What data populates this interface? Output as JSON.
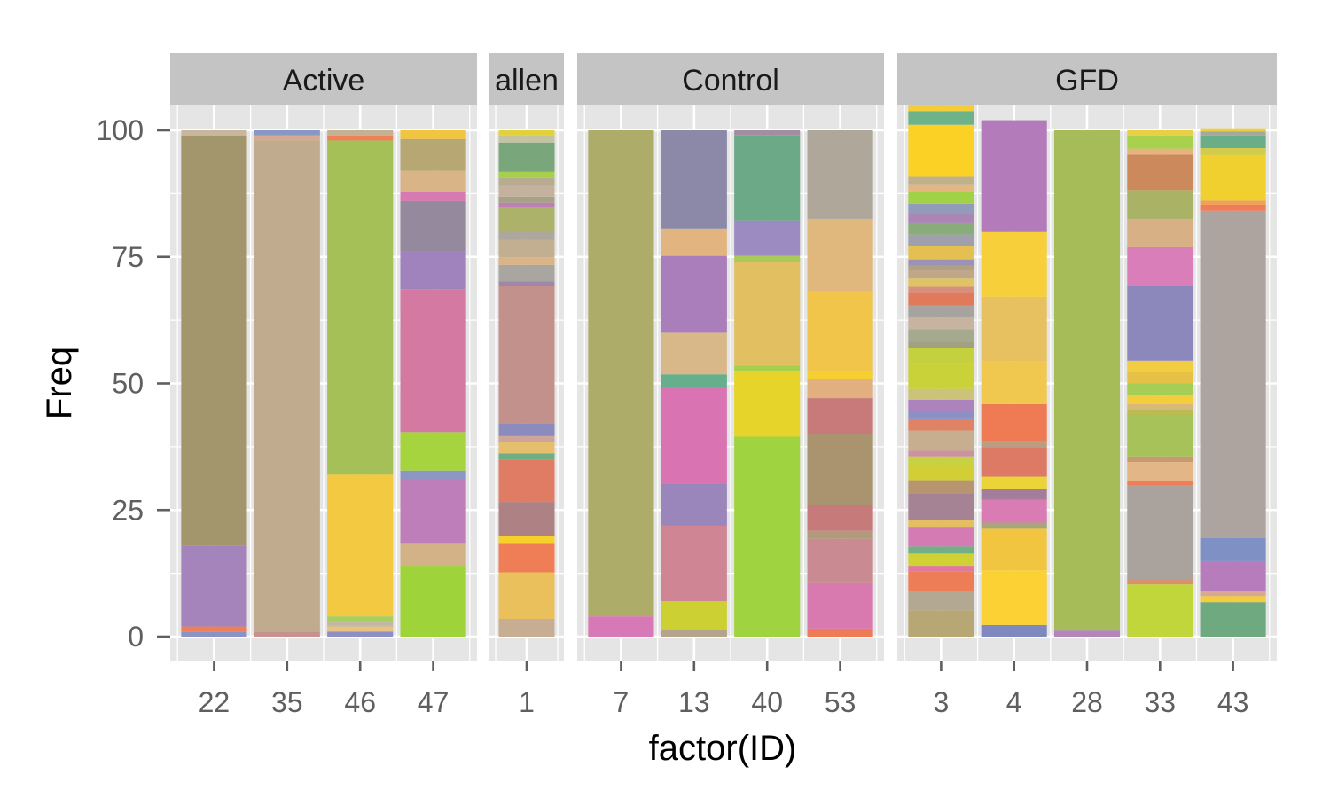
{
  "chart_data": {
    "type": "bar",
    "stacked": true,
    "title": "",
    "xlabel": "factor(ID)",
    "ylabel": "Freq",
    "ylim": [
      0,
      100
    ],
    "yticks": [
      0,
      25,
      50,
      75,
      100
    ],
    "colors": {
      "panel_bg": "#e5e5e5",
      "grid": "#ffffff",
      "strip_bg": "#c4c4c4",
      "tick_text": "#5f5f5f"
    },
    "panels": [
      {
        "label": "Active",
        "bars": [
          {
            "id": "22",
            "segments": [
              {
                "value": 1,
                "color": "#8b93c4"
              },
              {
                "value": 1,
                "color": "#ee7f58"
              },
              {
                "value": 16,
                "color": "#a583bb"
              },
              {
                "value": 81,
                "color": "#a3956c"
              },
              {
                "value": 1,
                "color": "#c8b79c"
              }
            ]
          },
          {
            "id": "35",
            "segments": [
              {
                "value": 1,
                "color": "#c7928e"
              },
              {
                "value": 97,
                "color": "#c1ab8e"
              },
              {
                "value": 1,
                "color": "#d6a990"
              },
              {
                "value": 1,
                "color": "#8798c6"
              }
            ]
          },
          {
            "id": "46",
            "segments": [
              {
                "value": 1,
                "color": "#8d90c4"
              },
              {
                "value": 1,
                "color": "#e7c283"
              },
              {
                "value": 1,
                "color": "#c2b8a4"
              },
              {
                "value": 1,
                "color": "#a8cf5c"
              },
              {
                "value": 28,
                "color": "#f2c940"
              },
              {
                "value": 66,
                "color": "#a4c057"
              },
              {
                "value": 1,
                "color": "#ee7f58"
              },
              {
                "value": 1,
                "color": "#c4b191"
              }
            ]
          },
          {
            "id": "47",
            "segments": [
              {
                "value": 14,
                "color": "#9fd33a"
              },
              {
                "value": 4.5,
                "color": "#d3b287"
              },
              {
                "value": 12.5,
                "color": "#bd7eba"
              },
              {
                "value": 1.8,
                "color": "#8d96c3"
              },
              {
                "value": 7.6,
                "color": "#a5d43e"
              },
              {
                "value": 28.2,
                "color": "#d379a2"
              },
              {
                "value": 7.5,
                "color": "#a083bd"
              },
              {
                "value": 9.9,
                "color": "#958a9d"
              },
              {
                "value": 1.8,
                "color": "#d87ab2"
              },
              {
                "value": 4.2,
                "color": "#d9b486"
              },
              {
                "value": 6.3,
                "color": "#b7a873"
              },
              {
                "value": 1.7,
                "color": "#f1c540"
              }
            ]
          }
        ]
      },
      {
        "label": "allen",
        "bars": [
          {
            "id": "1",
            "segments": [
              {
                "value": 3.5,
                "color": "#c7ae92"
              },
              {
                "value": 9.2,
                "color": "#e9c05c"
              },
              {
                "value": 5.8,
                "color": "#ef7d55"
              },
              {
                "value": 1.3,
                "color": "#f7d12b"
              },
              {
                "value": 6.8,
                "color": "#ae8184"
              },
              {
                "value": 8.3,
                "color": "#e07c63"
              },
              {
                "value": 1.3,
                "color": "#6fae83"
              },
              {
                "value": 2.2,
                "color": "#e5be6e"
              },
              {
                "value": 1.2,
                "color": "#cda59a"
              },
              {
                "value": 2.5,
                "color": "#8b8cbd"
              },
              {
                "value": 27.1,
                "color": "#c3918b"
              },
              {
                "value": 1.0,
                "color": "#9f86ab"
              },
              {
                "value": 3.2,
                "color": "#a9a6a1"
              },
              {
                "value": 1.5,
                "color": "#d8b486"
              },
              {
                "value": 3.4,
                "color": "#c2ae91"
              },
              {
                "value": 1.9,
                "color": "#ada79e"
              },
              {
                "value": 4.7,
                "color": "#adb26a"
              },
              {
                "value": 0.8,
                "color": "#bd80b5"
              },
              {
                "value": 1.2,
                "color": "#a6a285"
              },
              {
                "value": 2.1,
                "color": "#c5b29e"
              },
              {
                "value": 1.6,
                "color": "#b7ab90"
              },
              {
                "value": 1.2,
                "color": "#a5cf4d"
              },
              {
                "value": 5.8,
                "color": "#7aa67c"
              },
              {
                "value": 1.4,
                "color": "#c4c4a0"
              },
              {
                "value": 1.0,
                "color": "#e2d13b"
              }
            ]
          }
        ]
      },
      {
        "label": "Control",
        "bars": [
          {
            "id": "7",
            "segments": [
              {
                "value": 4,
                "color": "#d779b6"
              },
              {
                "value": 96,
                "color": "#adad69"
              }
            ]
          },
          {
            "id": "13",
            "segments": [
              {
                "value": 1.4,
                "color": "#b3a48b"
              },
              {
                "value": 5.6,
                "color": "#cdd032"
              },
              {
                "value": 14.9,
                "color": "#cf8594"
              },
              {
                "value": 8.3,
                "color": "#9b86bc"
              },
              {
                "value": 19.1,
                "color": "#d973b1"
              },
              {
                "value": 2.5,
                "color": "#65af8c"
              },
              {
                "value": 8.2,
                "color": "#d8b889"
              },
              {
                "value": 15.2,
                "color": "#a97eba"
              },
              {
                "value": 5.4,
                "color": "#e1b480"
              },
              {
                "value": 19.4,
                "color": "#8b88a8"
              }
            ]
          },
          {
            "id": "40",
            "segments": [
              {
                "value": 39.5,
                "color": "#9fd33f"
              },
              {
                "value": 13,
                "color": "#e7d42b"
              },
              {
                "value": 1,
                "color": "#a5d04e"
              },
              {
                "value": 20.5,
                "color": "#e2c061"
              },
              {
                "value": 1.2,
                "color": "#a9c95a"
              },
              {
                "value": 7,
                "color": "#9b8bc1"
              },
              {
                "value": 16.8,
                "color": "#6ba987"
              },
              {
                "value": 1,
                "color": "#a48da0"
              }
            ]
          },
          {
            "id": "53",
            "segments": [
              {
                "value": 1.6,
                "color": "#ef7a56"
              },
              {
                "value": 9.1,
                "color": "#d879b0"
              },
              {
                "value": 8.6,
                "color": "#c98b91"
              },
              {
                "value": 1.6,
                "color": "#b39a7c"
              },
              {
                "value": 5.1,
                "color": "#c77a7a"
              },
              {
                "value": 14,
                "color": "#a9946f"
              },
              {
                "value": 7.1,
                "color": "#c77a79"
              },
              {
                "value": 3.8,
                "color": "#e1b07e"
              },
              {
                "value": 1.5,
                "color": "#f5cf2f"
              },
              {
                "value": 15.9,
                "color": "#f0c54a"
              },
              {
                "value": 14.2,
                "color": "#e0b77c"
              },
              {
                "value": 17.5,
                "color": "#aea79a"
              }
            ]
          }
        ]
      },
      {
        "label": "GFD",
        "bars": [
          {
            "id": "3",
            "segments": [
              {
                "value": 5.2,
                "color": "#b7a774"
              },
              {
                "value": 3.9,
                "color": "#b3a993"
              },
              {
                "value": 3.8,
                "color": "#ec7d56"
              },
              {
                "value": 1.1,
                "color": "#e0799e"
              },
              {
                "value": 2.4,
                "color": "#d0d135"
              },
              {
                "value": 1.4,
                "color": "#72ae86"
              },
              {
                "value": 3.9,
                "color": "#d47bb4"
              },
              {
                "value": 1.4,
                "color": "#e4be63"
              },
              {
                "value": 5.1,
                "color": "#a68295"
              },
              {
                "value": 2.7,
                "color": "#b69570"
              },
              {
                "value": 2.9,
                "color": "#d2cf36"
              },
              {
                "value": 1.8,
                "color": "#c6d243"
              },
              {
                "value": 1.1,
                "color": "#cd92a0"
              },
              {
                "value": 4.0,
                "color": "#c7ae8e"
              },
              {
                "value": 2.4,
                "color": "#e08265"
              },
              {
                "value": 1.5,
                "color": "#8b90c5"
              },
              {
                "value": 2.2,
                "color": "#ad83be"
              },
              {
                "value": 2.1,
                "color": "#ccc27a"
              },
              {
                "value": 5.2,
                "color": "#c9d239"
              },
              {
                "value": 2.9,
                "color": "#c4d03d"
              },
              {
                "value": 1.3,
                "color": "#a3a07f"
              },
              {
                "value": 2.4,
                "color": "#a5aa8f"
              },
              {
                "value": 2.3,
                "color": "#c6b3a0"
              },
              {
                "value": 2.4,
                "color": "#a7a49f"
              },
              {
                "value": 2.5,
                "color": "#e07a5a"
              },
              {
                "value": 1.2,
                "color": "#d98f7e"
              },
              {
                "value": 1.6,
                "color": "#e0c463"
              },
              {
                "value": 1.5,
                "color": "#c0a789"
              },
              {
                "value": 1.1,
                "color": "#b39f82"
              },
              {
                "value": 1.2,
                "color": "#9a93b6"
              },
              {
                "value": 2.6,
                "color": "#e4c052"
              },
              {
                "value": 2.3,
                "color": "#9f9fae"
              },
              {
                "value": 2.4,
                "color": "#8aab7a"
              },
              {
                "value": 1.9,
                "color": "#aa86b5"
              },
              {
                "value": 1.8,
                "color": "#939bbb"
              },
              {
                "value": 2.4,
                "color": "#a1d146"
              },
              {
                "value": 1.3,
                "color": "#e2b880"
              },
              {
                "value": 1.6,
                "color": "#c0b18d"
              },
              {
                "value": 10.3,
                "color": "#fbd126"
              },
              {
                "value": 2.7,
                "color": "#6db289"
              },
              {
                "value": 1.7,
                "color": "#f4cd3a"
              },
              {
                "value": 1.2,
                "color": "#a5d05a"
              },
              {
                "value": 1.3,
                "color": "#c97c8b"
              },
              {
                "value": 1.3,
                "color": "#e7c85e"
              },
              {
                "value": 2.5,
                "color": "#f2cf34"
              },
              {
                "value": 1.6,
                "color": "#d47eb3"
              },
              {
                "value": 1.5,
                "color": "#a58a9e"
              }
            ]
          },
          {
            "id": "4",
            "segments": [
              {
                "value": 2.3,
                "color": "#7f88bf"
              },
              {
                "value": 10.8,
                "color": "#fbd134"
              },
              {
                "value": 8.2,
                "color": "#f1c53f"
              },
              {
                "value": 1.2,
                "color": "#a7a57a"
              },
              {
                "value": 4.5,
                "color": "#d97cb3"
              },
              {
                "value": 2.2,
                "color": "#a37e9a"
              },
              {
                "value": 2.4,
                "color": "#ead437"
              },
              {
                "value": 5.8,
                "color": "#dd7a65"
              },
              {
                "value": 1.3,
                "color": "#bb9d84"
              },
              {
                "value": 7.2,
                "color": "#ee7b54"
              },
              {
                "value": 8.5,
                "color": "#f0c84f"
              },
              {
                "value": 12.7,
                "color": "#e7c05f"
              },
              {
                "value": 12.8,
                "color": "#f6cf3a"
              },
              {
                "value": 22.1,
                "color": "#b37bb9"
              }
            ]
          },
          {
            "id": "28",
            "segments": [
              {
                "value": 1.2,
                "color": "#b186b8"
              },
              {
                "value": 98.8,
                "color": "#a6bc58"
              }
            ]
          },
          {
            "id": "33",
            "segments": [
              {
                "value": 10.3,
                "color": "#c0d63b"
              },
              {
                "value": 1.0,
                "color": "#d9906c"
              },
              {
                "value": 18.5,
                "color": "#aaa39d"
              },
              {
                "value": 1.0,
                "color": "#ef7d58"
              },
              {
                "value": 3.7,
                "color": "#e3b688"
              },
              {
                "value": 1.1,
                "color": "#c79a73"
              },
              {
                "value": 8.0,
                "color": "#a6c258"
              },
              {
                "value": 1.3,
                "color": "#b9bc50"
              },
              {
                "value": 1.0,
                "color": "#d8b779"
              },
              {
                "value": 1.7,
                "color": "#f2ce3c"
              },
              {
                "value": 2.4,
                "color": "#a6cd56"
              },
              {
                "value": 2.3,
                "color": "#e5c246"
              },
              {
                "value": 2.2,
                "color": "#f2cc41"
              },
              {
                "value": 14.8,
                "color": "#8d88bc"
              },
              {
                "value": 7.6,
                "color": "#d97eb8"
              },
              {
                "value": 5.6,
                "color": "#d7b185"
              },
              {
                "value": 5.7,
                "color": "#a9b265"
              },
              {
                "value": 7.0,
                "color": "#cc8a5c"
              },
              {
                "value": 1.2,
                "color": "#e5b57d"
              },
              {
                "value": 2.6,
                "color": "#a8d24e"
              },
              {
                "value": 1.0,
                "color": "#e9cf48"
              }
            ]
          },
          {
            "id": "43",
            "segments": [
              {
                "value": 6.8,
                "color": "#6fa97f"
              },
              {
                "value": 1.2,
                "color": "#f4cc3d"
              },
              {
                "value": 1.0,
                "color": "#d9a890"
              },
              {
                "value": 5.9,
                "color": "#b67cbc"
              },
              {
                "value": 4.6,
                "color": "#7f91c4"
              },
              {
                "value": 64.6,
                "color": "#aea49f"
              },
              {
                "value": 1.2,
                "color": "#ef7e58"
              },
              {
                "value": 0.8,
                "color": "#f0a058"
              },
              {
                "value": 9.0,
                "color": "#efd02e"
              },
              {
                "value": 1.4,
                "color": "#d3cb4b"
              },
              {
                "value": 2.5,
                "color": "#69ae87"
              },
              {
                "value": 0.8,
                "color": "#a3a99f"
              },
              {
                "value": 0.6,
                "color": "#f1cf3a"
              }
            ]
          }
        ]
      }
    ]
  }
}
